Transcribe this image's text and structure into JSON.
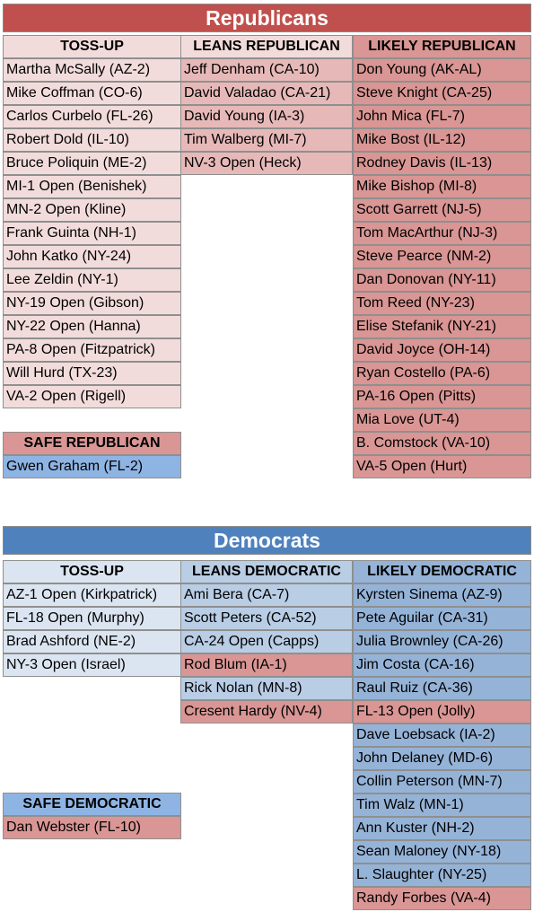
{
  "colors": {
    "rep_title": "#c0504d",
    "dem_title": "#4f81bd",
    "rep_tossup": "#f2dcdb",
    "rep_leans": "#e6b9b8",
    "rep_likely": "#d99694",
    "dem_tossup": "#dbe5f1",
    "dem_leans": "#b9cde5",
    "dem_likely": "#95b3d7",
    "flip_to_rep": "#d99694",
    "flip_to_dem": "#8eb4e3"
  },
  "republicans": {
    "title": "Republicans",
    "headers": [
      "TOSS-UP",
      "LEANS REPUBLICAN",
      "LIKELY REPUBLICAN"
    ],
    "tossup": [
      "Martha McSally (AZ-2)",
      "Mike Coffman (CO-6)",
      "Carlos Curbelo (FL-26)",
      "Robert Dold (IL-10)",
      "Bruce Poliquin (ME-2)",
      "MI-1 Open (Benishek)",
      "MN-2 Open (Kline)",
      "Frank Guinta (NH-1)",
      "John Katko (NY-24)",
      "Lee Zeldin (NY-1)",
      "NY-19 Open (Gibson)",
      "NY-22 Open (Hanna)",
      "PA-8 Open (Fitzpatrick)",
      "Will Hurd (TX-23)",
      "VA-2 Open (Rigell)"
    ],
    "leans": [
      "Jeff Denham (CA-10)",
      "David Valadao (CA-21)",
      "David Young (IA-3)",
      "Tim Walberg (MI-7)",
      "NV-3 Open (Heck)"
    ],
    "likely": [
      "Don Young (AK-AL)",
      "Steve Knight (CA-25)",
      "John Mica (FL-7)",
      "Mike Bost (IL-12)",
      "Rodney Davis (IL-13)",
      "Mike Bishop (MI-8)",
      "Scott Garrett (NJ-5)",
      "Tom MacArthur (NJ-3)",
      "Steve Pearce (NM-2)",
      "Dan Donovan (NY-11)",
      "Tom Reed (NY-23)",
      "Elise Stefanik (NY-21)",
      "David Joyce (OH-14)",
      "Ryan Costello (PA-6)",
      "PA-16 Open (Pitts)",
      "Mia Love (UT-4)",
      "B. Comstock (VA-10)",
      "VA-5 Open (Hurt)"
    ],
    "safe_header": "SAFE REPUBLICAN",
    "safe": [
      "Gwen Graham (FL-2)"
    ]
  },
  "democrats": {
    "title": "Democrats",
    "headers": [
      "TOSS-UP",
      "LEANS DEMOCRATIC",
      "LIKELY DEMOCRATIC"
    ],
    "tossup": [
      "AZ-1 Open (Kirkpatrick)",
      "FL-18 Open (Murphy)",
      "Brad Ashford (NE-2)",
      "NY-3 Open (Israel)"
    ],
    "leans": [
      "Ami Bera (CA-7)",
      "Scott Peters (CA-52)",
      "CA-24 Open (Capps)",
      "Rod Blum (IA-1)",
      "Rick Nolan (MN-8)",
      "Cresent Hardy (NV-4)"
    ],
    "likely": [
      "Kyrsten Sinema (AZ-9)",
      "Pete Aguilar (CA-31)",
      "Julia Brownley (CA-26)",
      "Jim Costa (CA-16)",
      "Raul Ruiz (CA-36)",
      "FL-13 Open (Jolly)",
      "Dave Loebsack (IA-2)",
      "John Delaney (MD-6)",
      "Collin Peterson (MN-7)",
      "Tim Walz (MN-1)",
      "Ann Kuster (NH-2)",
      "Sean Maloney (NY-18)",
      "L. Slaughter (NY-25)",
      "Randy Forbes (VA-4)"
    ],
    "leans_flipped": [
      "Rod Blum (IA-1)",
      "Cresent Hardy (NV-4)"
    ],
    "likely_flipped": [
      "FL-13 Open (Jolly)",
      "Randy Forbes (VA-4)"
    ],
    "safe_header": "SAFE DEMOCRATIC",
    "safe": [
      "Dan Webster (FL-10)"
    ]
  }
}
